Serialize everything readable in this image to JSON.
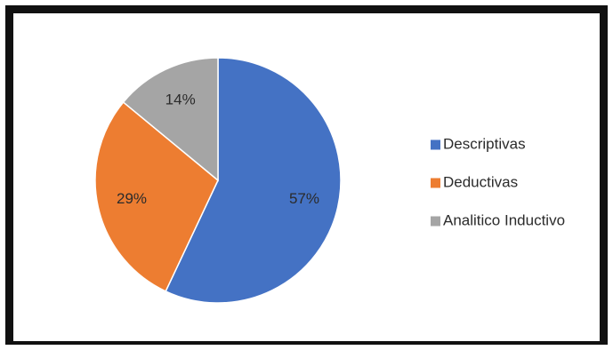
{
  "chart_data": {
    "type": "pie",
    "title": "",
    "legend_position": "right",
    "slices": [
      {
        "name": "Descriptivas",
        "value": 57,
        "label": "57%",
        "color": "#4472c4"
      },
      {
        "name": "Deductivas",
        "value": 29,
        "label": "29%",
        "color": "#ed7d31"
      },
      {
        "name": "Analitico Inductivo",
        "value": 14,
        "label": "14%",
        "color": "#a5a5a5"
      }
    ]
  }
}
